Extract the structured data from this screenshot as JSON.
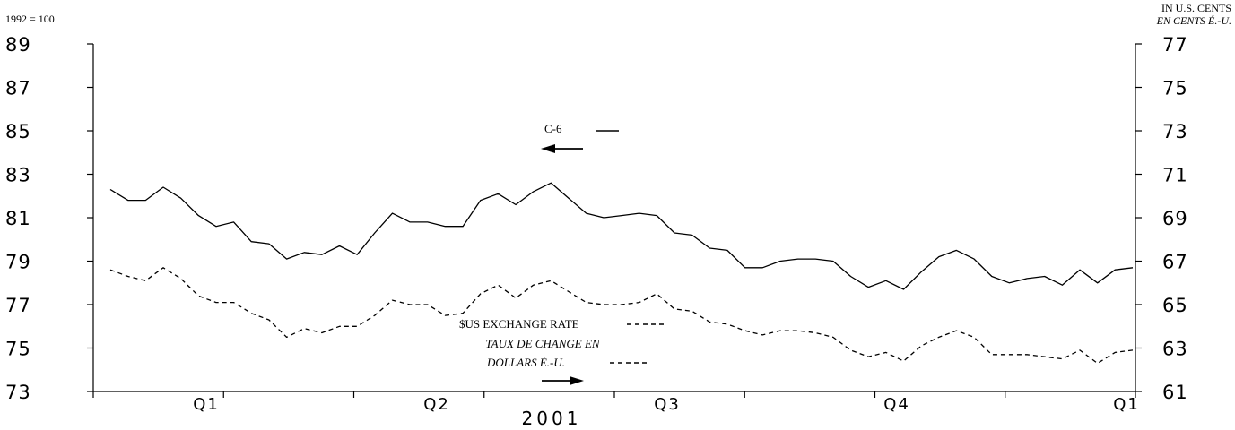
{
  "chart_data": {
    "type": "line",
    "left_axis_note": "1992 = 100",
    "right_axis_note_line1": "IN U.S. CENTS",
    "right_axis_note_line2": "EN CENTS É.-U.",
    "xlabel": "2001",
    "x_ticks": [
      "Q1",
      "Q2",
      "Q3",
      "Q4",
      "Q1"
    ],
    "y_left": {
      "ylim": [
        73,
        89
      ],
      "ticks": [
        89,
        87,
        85,
        83,
        81,
        79,
        77,
        75,
        73
      ]
    },
    "y_right": {
      "ylim": [
        61,
        77
      ],
      "ticks": [
        77,
        75,
        73,
        71,
        69,
        67,
        65,
        63,
        61
      ]
    },
    "grid": false,
    "series": [
      {
        "name": "C-6",
        "axis": "left",
        "style": "solid",
        "values": [
          82.3,
          81.8,
          81.8,
          82.4,
          81.9,
          81.1,
          80.6,
          80.8,
          79.9,
          79.8,
          79.1,
          79.4,
          79.3,
          79.7,
          79.3,
          80.3,
          81.2,
          80.8,
          80.8,
          80.6,
          80.6,
          81.8,
          82.1,
          81.6,
          82.2,
          82.6,
          81.9,
          81.2,
          81.0,
          81.1,
          81.2,
          81.1,
          80.3,
          80.2,
          79.6,
          79.5,
          78.7,
          78.7,
          79.0,
          79.1,
          79.1,
          79.0,
          78.3,
          77.8,
          78.1,
          77.7,
          78.5,
          79.2,
          79.5,
          79.1,
          78.3,
          78.0,
          78.2,
          78.3,
          77.9,
          78.6,
          78.0,
          78.6,
          78.7
        ]
      },
      {
        "name": "$US EXCHANGE RATE",
        "name_fr_line1": "TAUX DE CHANGE EN",
        "name_fr_line2": "DOLLARS É.-U.",
        "axis": "right",
        "style": "dashed",
        "values": [
          66.6,
          66.3,
          66.1,
          66.7,
          66.2,
          65.4,
          65.1,
          65.1,
          64.6,
          64.3,
          63.5,
          63.9,
          63.7,
          64.0,
          64.0,
          64.5,
          65.2,
          65.0,
          65.0,
          64.5,
          64.6,
          65.5,
          65.9,
          65.3,
          65.9,
          66.1,
          65.6,
          65.1,
          65.0,
          65.0,
          65.1,
          65.5,
          64.8,
          64.7,
          64.2,
          64.1,
          63.8,
          63.6,
          63.8,
          63.8,
          63.7,
          63.5,
          62.9,
          62.6,
          62.8,
          62.4,
          63.1,
          63.5,
          63.8,
          63.5,
          62.7,
          62.7,
          62.7,
          62.6,
          62.5,
          62.9,
          62.3,
          62.8,
          62.9
        ]
      }
    ]
  },
  "legend": {
    "c6_label": "C-6",
    "usd_label": "$US EXCHANGE RATE",
    "usd_label_fr_1": "TAUX DE CHANGE EN",
    "usd_label_fr_2": "DOLLARS É.-U."
  }
}
